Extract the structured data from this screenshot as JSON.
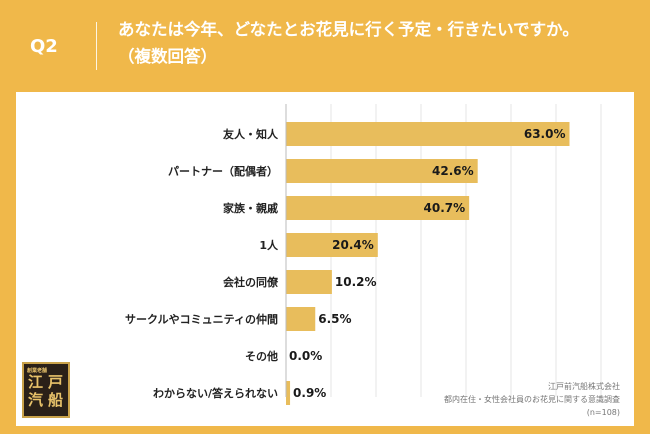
{
  "header": {
    "q_label": "Q2",
    "question_line1": "あなたは今年、どなたとお花見に行く予定・行きたいですか。",
    "question_line2": "（複数回答）"
  },
  "colors": {
    "background": "#f0b84a",
    "bar": "#e8bd5c",
    "panel": "#ffffff"
  },
  "chart_data": {
    "type": "bar",
    "orientation": "horizontal",
    "title": "あなたは今年、どなたとお花見に行く予定・行きたいですか。（複数回答）",
    "categories": [
      "友人・知人",
      "パートナー（配偶者）",
      "家族・親戚",
      "1人",
      "会社の同僚",
      "サークルやコミュニティの仲間",
      "その他",
      "わからない/答えられない"
    ],
    "values": [
      63.0,
      42.6,
      40.7,
      20.4,
      10.2,
      6.5,
      0.0,
      0.9
    ],
    "value_labels": [
      "63.0%",
      "42.6%",
      "40.7%",
      "20.4%",
      "10.2%",
      "6.5%",
      "0.0%",
      "0.9%"
    ],
    "unit": "%",
    "xlim": [
      0,
      100
    ],
    "grid": true
  },
  "logo": {
    "small": "創業老舗",
    "chars": [
      "江",
      "戸",
      "汽",
      "船"
    ]
  },
  "source": {
    "company": "江戸前汽船株式会社",
    "survey": "都内在住・女性会社員のお花見に関する意識調査",
    "sample": "(n=108)"
  }
}
